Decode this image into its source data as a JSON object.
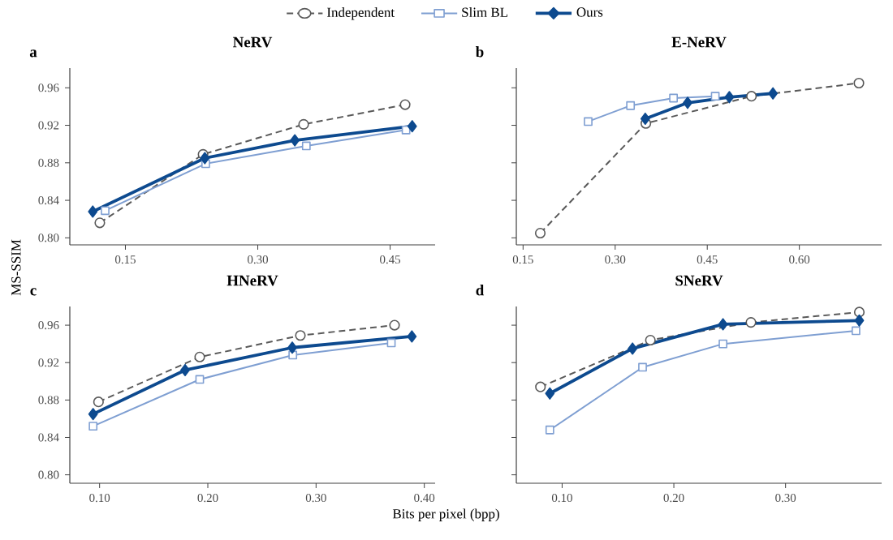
{
  "chart_data": [
    {
      "type": "line",
      "title": "NeRV",
      "annotations": [
        "a"
      ],
      "ylabel": "MS-SSIM",
      "legend": "top",
      "grid": false,
      "xlim": [
        0.087,
        0.501
      ],
      "ylim": [
        0.7925,
        0.981
      ],
      "xticks": [
        {
          "value": 0.15,
          "label": "0.15"
        },
        {
          "value": 0.3,
          "label": "0.30"
        },
        {
          "value": 0.45,
          "label": "0.45"
        }
      ],
      "yticks": [
        {
          "value": 0.8,
          "label": "0.80"
        },
        {
          "value": 0.84,
          "label": "0.84"
        },
        {
          "value": 0.88,
          "label": "0.88"
        },
        {
          "value": 0.92,
          "label": "0.92"
        },
        {
          "value": 0.96,
          "label": "0.96"
        }
      ],
      "series": [
        {
          "name": "Independent",
          "color": "#595959",
          "marker": "circle",
          "line_style": "dashed",
          "x": [
            0.121,
            0.238,
            0.352,
            0.467
          ],
          "values": [
            0.816,
            0.889,
            0.921,
            0.942
          ]
        },
        {
          "name": "Slim BL",
          "color": "#7f9fd2",
          "marker": "square",
          "line_style": "solid",
          "x": [
            0.127,
            0.241,
            0.355,
            0.468
          ],
          "values": [
            0.829,
            0.879,
            0.898,
            0.915
          ]
        },
        {
          "name": "Ours",
          "color": "#0d4a8f",
          "marker": "diamond",
          "line_style": "solid",
          "x": [
            0.113,
            0.24,
            0.342,
            0.475
          ],
          "values": [
            0.828,
            0.885,
            0.904,
            0.919
          ]
        }
      ]
    },
    {
      "type": "line",
      "title": "E-NeRV",
      "annotations": [
        "b"
      ],
      "tick_labels": "x",
      "grid": false,
      "xlim": [
        0.139,
        0.734
      ],
      "ylim": [
        0.7925,
        0.981
      ],
      "xticks": [
        {
          "value": 0.15,
          "label": "0.15"
        },
        {
          "value": 0.3,
          "label": "0.30"
        },
        {
          "value": 0.45,
          "label": "0.45"
        },
        {
          "value": 0.6,
          "label": "0.60"
        }
      ],
      "yticks": [
        {
          "value": 0.8,
          "label": null
        },
        {
          "value": 0.84,
          "label": null
        },
        {
          "value": 0.88,
          "label": null
        },
        {
          "value": 0.92,
          "label": null
        },
        {
          "value": 0.96,
          "label": null
        }
      ],
      "series": [
        {
          "color": "#595959",
          "marker": "circle",
          "line_style": "dashed",
          "x": [
            0.178,
            0.35,
            0.522,
            0.697
          ],
          "values": [
            0.805,
            0.922,
            0.951,
            0.965
          ]
        },
        {
          "color": "#7f9fd2",
          "marker": "square",
          "line_style": "solid",
          "x": [
            0.256,
            0.325,
            0.395,
            0.463
          ],
          "values": [
            0.924,
            0.941,
            0.949,
            0.951
          ]
        },
        {
          "color": "#0d4a8f",
          "marker": "diamond",
          "line_style": "solid",
          "x": [
            0.349,
            0.418,
            0.486,
            0.557
          ],
          "values": [
            0.927,
            0.944,
            0.95,
            0.954
          ]
        }
      ]
    },
    {
      "type": "line",
      "title": "HNeRV",
      "annotations": [
        "c"
      ],
      "xlabel": "Bits per pixel (bpp)",
      "grid": false,
      "xlim": [
        0.0725,
        0.41
      ],
      "ylim": [
        0.791,
        0.98
      ],
      "xticks": [
        {
          "value": 0.1,
          "label": "0.10"
        },
        {
          "value": 0.2,
          "label": "0.20"
        },
        {
          "value": 0.3,
          "label": "0.30"
        },
        {
          "value": 0.4,
          "label": "0.40"
        }
      ],
      "yticks": [
        {
          "value": 0.8,
          "label": "0.80"
        },
        {
          "value": 0.84,
          "label": "0.84"
        },
        {
          "value": 0.88,
          "label": "0.88"
        },
        {
          "value": 0.92,
          "label": "0.92"
        },
        {
          "value": 0.96,
          "label": "0.96"
        }
      ],
      "series": [
        {
          "color": "#595959",
          "marker": "circle",
          "line_style": "dashed",
          "x": [
            0.099,
            0.1925,
            0.2855,
            0.3725
          ],
          "values": [
            0.878,
            0.926,
            0.949,
            0.96
          ]
        },
        {
          "color": "#7f9fd2",
          "marker": "square",
          "line_style": "solid",
          "x": [
            0.094,
            0.1925,
            0.2785,
            0.3695
          ],
          "values": [
            0.852,
            0.902,
            0.928,
            0.941
          ]
        },
        {
          "color": "#0d4a8f",
          "marker": "diamond",
          "line_style": "solid",
          "x": [
            0.094,
            0.179,
            0.278,
            0.3885
          ],
          "values": [
            0.865,
            0.912,
            0.936,
            0.948
          ]
        }
      ]
    },
    {
      "type": "line",
      "title": "SNeRV",
      "annotations": [
        "d"
      ],
      "tick_labels": "x",
      "grid": false,
      "xlim": [
        0.059,
        0.386
      ],
      "ylim": [
        0.791,
        0.98
      ],
      "xticks": [
        {
          "value": 0.1,
          "label": "0.10"
        },
        {
          "value": 0.2,
          "label": "0.20"
        },
        {
          "value": 0.3,
          "label": "0.30"
        }
      ],
      "yticks": [
        {
          "value": 0.8,
          "label": null
        },
        {
          "value": 0.84,
          "label": null
        },
        {
          "value": 0.88,
          "label": null
        },
        {
          "value": 0.92,
          "label": null
        },
        {
          "value": 0.96,
          "label": null
        }
      ],
      "series": [
        {
          "color": "#595959",
          "marker": "circle",
          "line_style": "dashed",
          "x": [
            0.0806,
            0.179,
            0.269,
            0.366
          ],
          "values": [
            0.894,
            0.944,
            0.963,
            0.974
          ]
        },
        {
          "color": "#7f9fd2",
          "marker": "square",
          "line_style": "solid",
          "x": [
            0.089,
            0.172,
            0.244,
            0.363
          ],
          "values": [
            0.848,
            0.915,
            0.94,
            0.954
          ]
        },
        {
          "color": "#0d4a8f",
          "marker": "diamond",
          "line_style": "solid",
          "x": [
            0.089,
            0.163,
            0.244,
            0.366
          ],
          "values": [
            0.887,
            0.935,
            0.961,
            0.965
          ]
        }
      ]
    }
  ]
}
